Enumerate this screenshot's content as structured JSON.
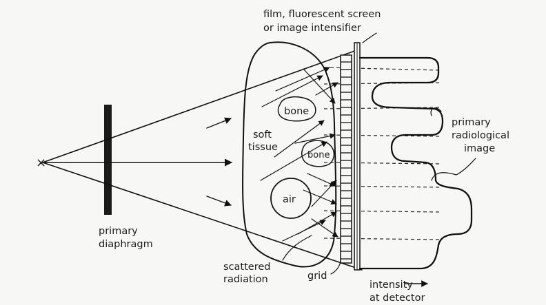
{
  "labels": {
    "film_line1": "film, fluorescent screen",
    "film_line2": "or image intensifier",
    "primary_image_line1": "primary",
    "primary_image_line2": "radiological",
    "primary_image_line3": "image",
    "soft_tissue_line1": "soft",
    "soft_tissue_line2": "tissue",
    "bone_upper": "bone",
    "bone_lower": "bone",
    "air": "air",
    "diaphragm_line1": "primary",
    "diaphragm_line2": "diaphragm",
    "scattered_line1": "scattered",
    "scattered_line2": "radiation",
    "grid": "grid",
    "intensity_line1": "intensity",
    "intensity_line2": "at detector",
    "source_mark": "×"
  }
}
